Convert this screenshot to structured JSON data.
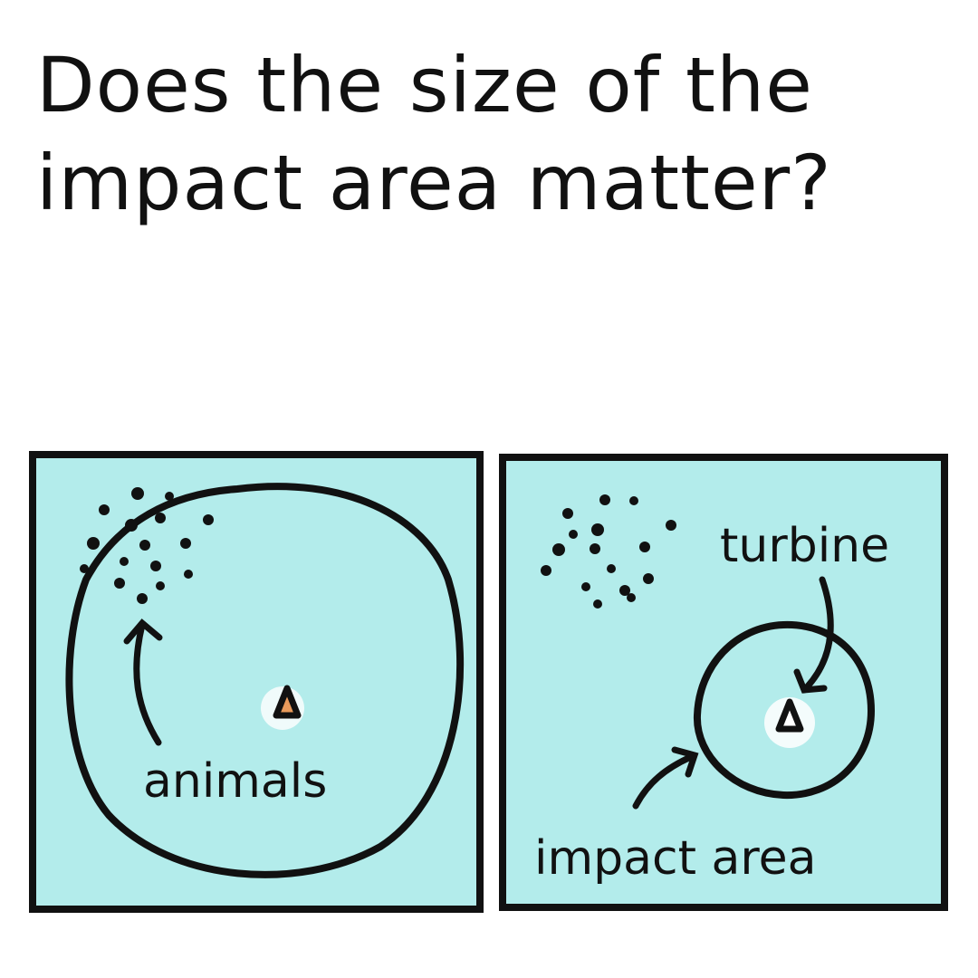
{
  "title": {
    "line1": "Does the size of the",
    "line2": "impact area matter?"
  },
  "panels": [
    {
      "annotation": "animals",
      "elements": [
        "animal-cluster",
        "large-impact-circle",
        "turbine-icon"
      ]
    },
    {
      "annotations": [
        "turbine",
        "impact area"
      ],
      "elements": [
        "animal-cluster",
        "small-impact-circle",
        "turbine-icon"
      ]
    }
  ],
  "colors": {
    "water": "#b3eceb",
    "ink": "#111111",
    "turbine_fill": "#e89a5b"
  }
}
